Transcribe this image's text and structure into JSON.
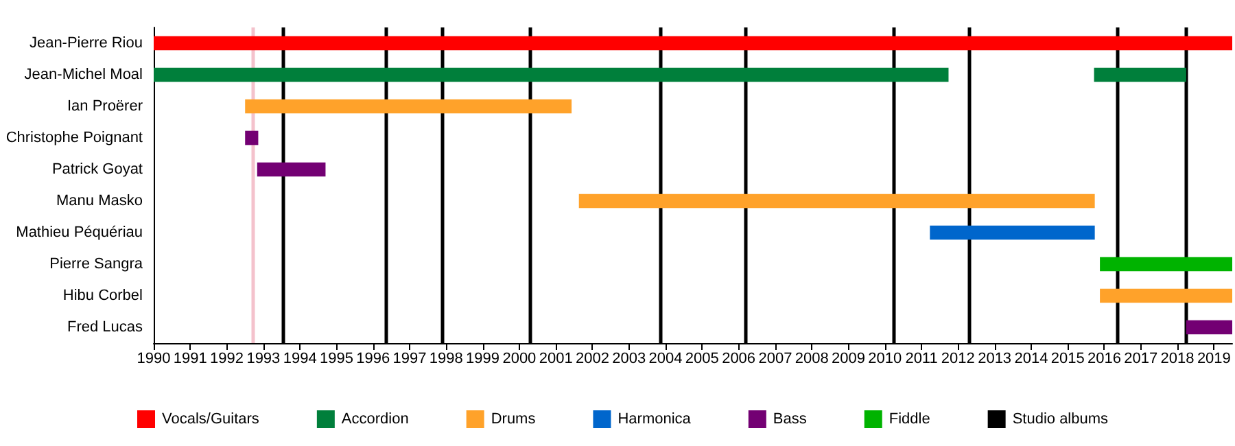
{
  "chart_data": {
    "type": "bar",
    "orientation": "horizontal",
    "categories": [
      "Jean-Pierre Riou",
      "Jean-Michel Moal",
      "Ian Proërer",
      "Christophe Poignant",
      "Patrick Goyat",
      "Manu Masko",
      "Mathieu Péquériau",
      "Pierre Sangra",
      "Hibu Corbel",
      "Fred Lucas"
    ],
    "series": [
      {
        "name": "Vocals/Guitars",
        "color": "#ff0000",
        "values": [
          29.5,
          null,
          null,
          null,
          null,
          null,
          null,
          null,
          null,
          null
        ],
        "base": [
          1990,
          null,
          null,
          null,
          null,
          null,
          null,
          null,
          null,
          null
        ]
      },
      {
        "name": "Accordion",
        "color": "#007f3b",
        "values": [
          null,
          21.74,
          null,
          null,
          null,
          null,
          null,
          null,
          null,
          null
        ],
        "base": [
          null,
          1990,
          null,
          null,
          null,
          null,
          null,
          null,
          null,
          null
        ]
      },
      {
        "color": "#007f3b",
        "values": [
          null,
          2.52,
          null,
          null,
          null,
          null,
          null,
          null,
          null,
          null
        ],
        "base": [
          null,
          2015.72,
          null,
          null,
          null,
          null,
          null,
          null,
          null,
          null
        ]
      },
      {
        "name": "Drums",
        "color": "#ffa22a",
        "values": [
          null,
          null,
          8.93,
          null,
          null,
          14.11,
          null,
          null,
          3.62,
          null
        ],
        "base": [
          null,
          null,
          1992.5,
          null,
          null,
          2001.63,
          null,
          null,
          2015.88,
          null
        ]
      },
      {
        "name": "Harmonica",
        "color": "#0066cc",
        "values": [
          null,
          null,
          null,
          null,
          null,
          null,
          4.51,
          null,
          null,
          null
        ],
        "base": [
          null,
          null,
          null,
          null,
          null,
          null,
          2011.23,
          null,
          null,
          null
        ]
      },
      {
        "name": "Bass",
        "color": "#730073",
        "values": [
          null,
          null,
          null,
          0.36,
          1.87,
          null,
          null,
          null,
          null,
          1.26
        ],
        "base": [
          null,
          null,
          null,
          1992.5,
          1992.83,
          null,
          null,
          null,
          null,
          2018.24
        ]
      },
      {
        "name": "Fiddle",
        "color": "#00b300",
        "values": [
          null,
          null,
          null,
          null,
          null,
          null,
          null,
          3.62,
          null,
          null
        ],
        "base": [
          null,
          null,
          null,
          null,
          null,
          null,
          null,
          2015.88,
          null,
          null
        ]
      },
      {
        "name": "Studio albums",
        "color": "#000000",
        "values": [
          null,
          null,
          null,
          null,
          null,
          null,
          null,
          null,
          null,
          null
        ]
      }
    ],
    "ref_lines": [
      {
        "axis": "x",
        "value": 1992.7,
        "color": "#f4c2cc"
      },
      {
        "axis": "x",
        "value": 1993.53,
        "color": "#000000"
      },
      {
        "axis": "x",
        "value": 1996.35,
        "color": "#000000"
      },
      {
        "axis": "x",
        "value": 1997.88,
        "color": "#000000"
      },
      {
        "axis": "x",
        "value": 2000.28,
        "color": "#000000"
      },
      {
        "axis": "x",
        "value": 2003.87,
        "color": "#000000"
      },
      {
        "axis": "x",
        "value": 2006.2,
        "color": "#000000"
      },
      {
        "axis": "x",
        "value": 2010.25,
        "color": "#000000"
      },
      {
        "axis": "x",
        "value": 2012.32,
        "color": "#000000"
      },
      {
        "axis": "x",
        "value": 2016.37,
        "color": "#000000"
      },
      {
        "axis": "x",
        "value": 2018.24,
        "color": "#000000"
      }
    ],
    "xlim": [
      1990,
      2019.5
    ],
    "xticks": [
      1990,
      1991,
      1992,
      1993,
      1994,
      1995,
      1996,
      1997,
      1998,
      1999,
      2000,
      2001,
      2002,
      2003,
      2004,
      2005,
      2006,
      2007,
      2008,
      2009,
      2010,
      2011,
      2012,
      2013,
      2014,
      2015,
      2016,
      2017,
      2018,
      2019
    ],
    "grid": false,
    "legend": "bottom"
  }
}
